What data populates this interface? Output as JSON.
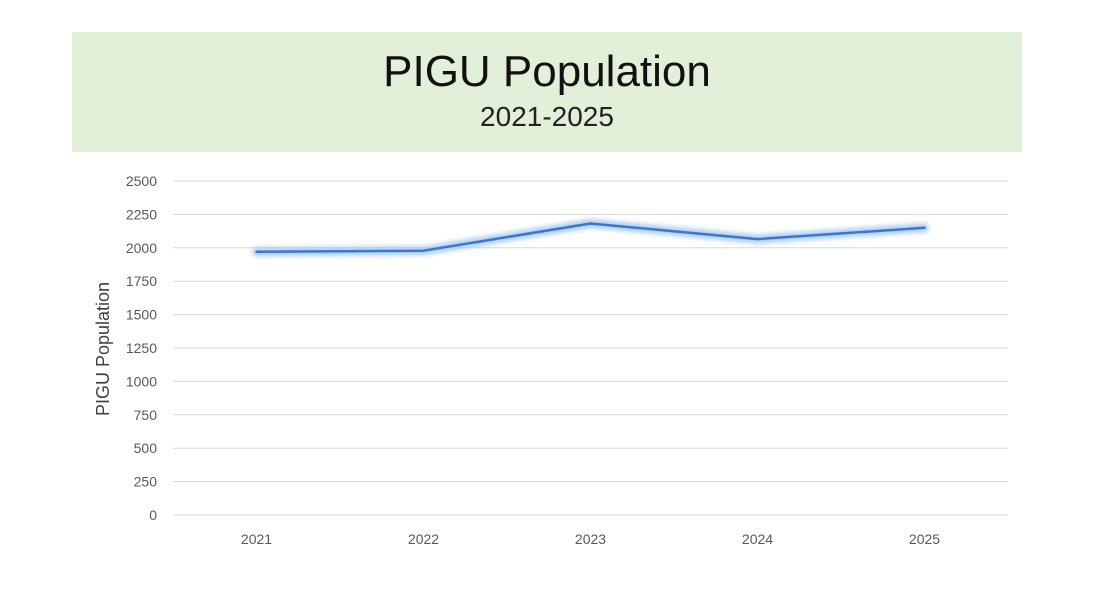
{
  "slide": {
    "title": "PIGU Population",
    "subtitle": "2021-2025"
  },
  "colors": {
    "banner": "#e2efd9",
    "line": "#3b76d0",
    "glow": "#9cc3f0",
    "grid": "#d9d9d9",
    "tick": "#595959"
  },
  "chart_data": {
    "type": "line",
    "title": "PIGU Population",
    "subtitle": "2021-2025",
    "xlabel": "",
    "ylabel": "PIGU Population",
    "categories": [
      "2021",
      "2022",
      "2023",
      "2024",
      "2025"
    ],
    "series": [
      {
        "values": [
          1970,
          1978,
          2182,
          2065,
          2150
        ]
      }
    ],
    "ylim": [
      0,
      2500
    ],
    "yticks": [
      0,
      250,
      500,
      750,
      1000,
      1250,
      1500,
      1750,
      2000,
      2250,
      2500
    ],
    "grid": true,
    "legend": "none"
  }
}
